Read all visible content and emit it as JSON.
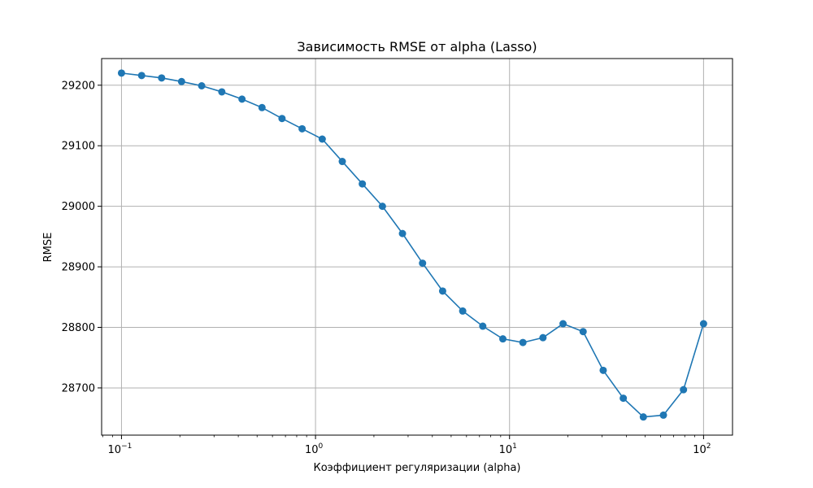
{
  "chart_data": {
    "type": "line",
    "title": "Зависимость RMSE от alpha (Lasso)",
    "xlabel": "Коэффициент регуляризации (alpha)",
    "ylabel": "RMSE",
    "xscale": "log",
    "xlim": [
      0.079,
      141
    ],
    "ylim": [
      28622,
      29244
    ],
    "grid": true,
    "line_color": "#1f77b4",
    "marker": "circle",
    "x_ticks": [
      {
        "value": 0.1,
        "base": "10",
        "exp": "−1"
      },
      {
        "value": 1,
        "base": "10",
        "exp": "0"
      },
      {
        "value": 10,
        "base": "10",
        "exp": "1"
      },
      {
        "value": 100,
        "base": "10",
        "exp": "2"
      }
    ],
    "y_ticks": [
      28700,
      28800,
      28900,
      29000,
      29100,
      29200
    ],
    "series": [
      {
        "x": [
          0.1,
          0.127,
          0.161,
          0.204,
          0.259,
          0.329,
          0.418,
          0.53,
          0.672,
          0.853,
          1.083,
          1.374,
          1.743,
          2.212,
          2.807,
          3.562,
          4.52,
          5.736,
          7.279,
          9.237,
          11.72,
          14.87,
          18.87,
          23.95,
          30.39,
          38.57,
          48.94,
          62.1,
          78.8,
          100.0
        ],
        "y": [
          29220,
          29216,
          29212,
          29206,
          29199,
          29189,
          29177,
          29163,
          29145,
          29128,
          29111,
          29074,
          29037,
          29000,
          28955,
          28906,
          28860,
          28827,
          28802,
          28781,
          28775,
          28783,
          28806,
          28793,
          28729,
          28683,
          28652,
          28655,
          28697,
          28806
        ]
      }
    ]
  }
}
